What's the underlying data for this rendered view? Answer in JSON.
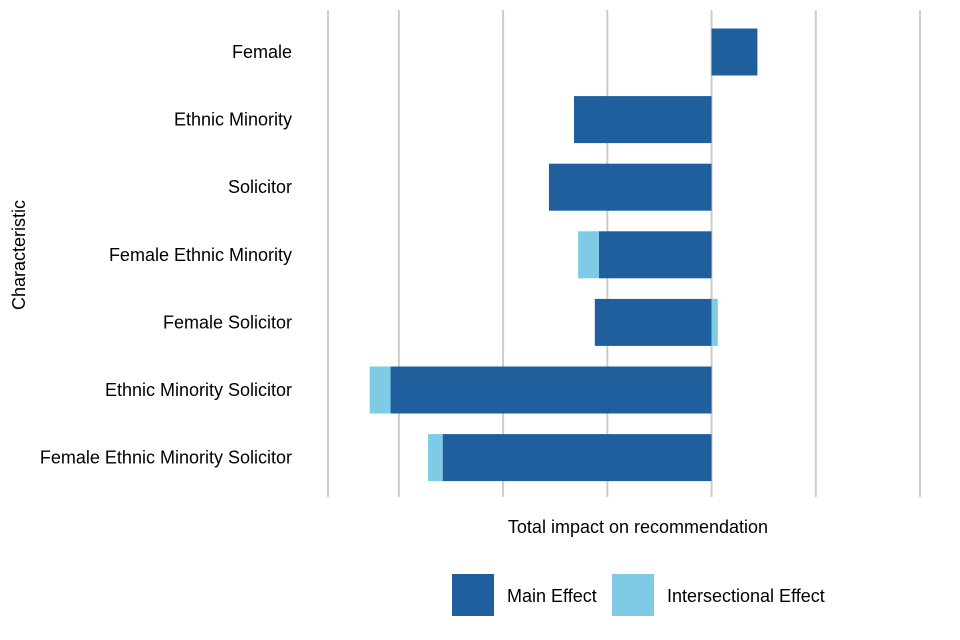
{
  "chart_data": {
    "type": "bar",
    "orientation": "horizontal",
    "stacked": true,
    "categories": [
      "Female",
      "Ethnic Minority",
      "Solicitor",
      "Female Ethnic Minority",
      "Female Solicitor",
      "Ethnic Minority Solicitor",
      "Female Ethnic Minority Solicitor"
    ],
    "series": [
      {
        "name": "Main Effect",
        "color": "#1f5f9e",
        "values": [
          0.22,
          -0.66,
          -0.78,
          -0.54,
          -0.56,
          -1.54,
          -1.29
        ]
      },
      {
        "name": "Intersectional Effect",
        "color": "#7fcbe5",
        "values": [
          0,
          0,
          0,
          -0.1,
          0.03,
          -0.1,
          -0.07
        ]
      }
    ],
    "xlabel": "Total impact on recommendation",
    "ylabel": "Characteristic",
    "xlim": [
      -1.84,
      1.0
    ],
    "tick_labels_shown": false,
    "grid": true,
    "legend_position": "bottom"
  }
}
